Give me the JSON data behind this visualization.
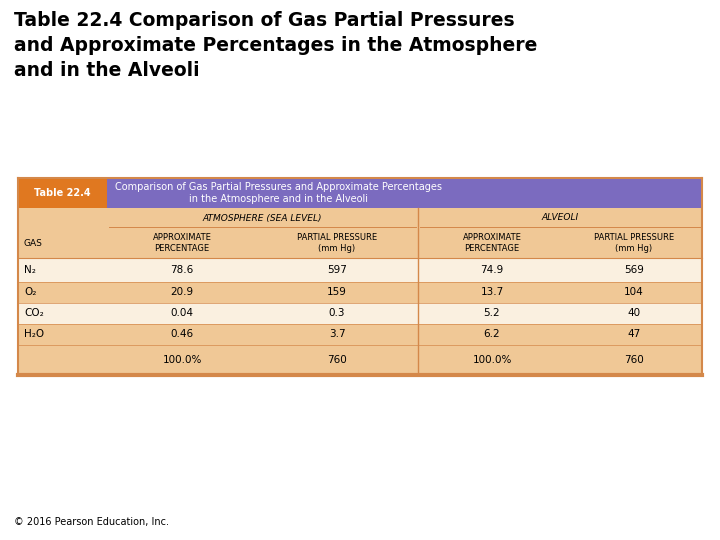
{
  "title_line1": "Table 22.4 Comparison of Gas Partial Pressures",
  "title_line2": "and Approximate Percentages in the Atmosphere",
  "title_line3": "and in the Alveoli",
  "table_label": "Table 22.4",
  "table_subtitle_line1": "Comparison of Gas Partial Pressures and Approximate Percentages",
  "table_subtitle_line2": "in the Atmosphere and in the Alveoli",
  "col_header_atm": "ATMOSPHERE (SEA LEVEL)",
  "col_header_alv": "ALVEOLI",
  "sub_headers": [
    "GAS",
    "APPROXIMATE\nPERCENTAGE",
    "PARTIAL PRESSURE\n(mm Hg)",
    "APPROXIMATE\nPERCENTAGE",
    "PARTIAL PRESSURE\n(mm Hg)"
  ],
  "gas_names": [
    "N₂",
    "O₂",
    "CO₂",
    "H₂O",
    ""
  ],
  "atm_pct": [
    "78.6",
    "20.9",
    "0.04",
    "0.46",
    "100.0%"
  ],
  "atm_pp": [
    "597",
    "159",
    "0.3",
    "3.7",
    "760"
  ],
  "alv_pct": [
    "74.9",
    "13.7",
    "5.2",
    "6.2",
    "100.0%"
  ],
  "alv_pp": [
    "569",
    "104",
    "40",
    "47",
    "760"
  ],
  "color_header_label": "#e07820",
  "color_header_bg": "#7b6bbf",
  "color_subheader_bg": "#f0c896",
  "color_row_light": "#faf0e0",
  "color_row_dark": "#f0c896",
  "color_border_outer": "#d4884a",
  "color_border_inner": "#d4884a",
  "color_divider": "#d4884a",
  "copyright": "© 2016 Pearson Education, Inc.",
  "background_color": "#ffffff"
}
